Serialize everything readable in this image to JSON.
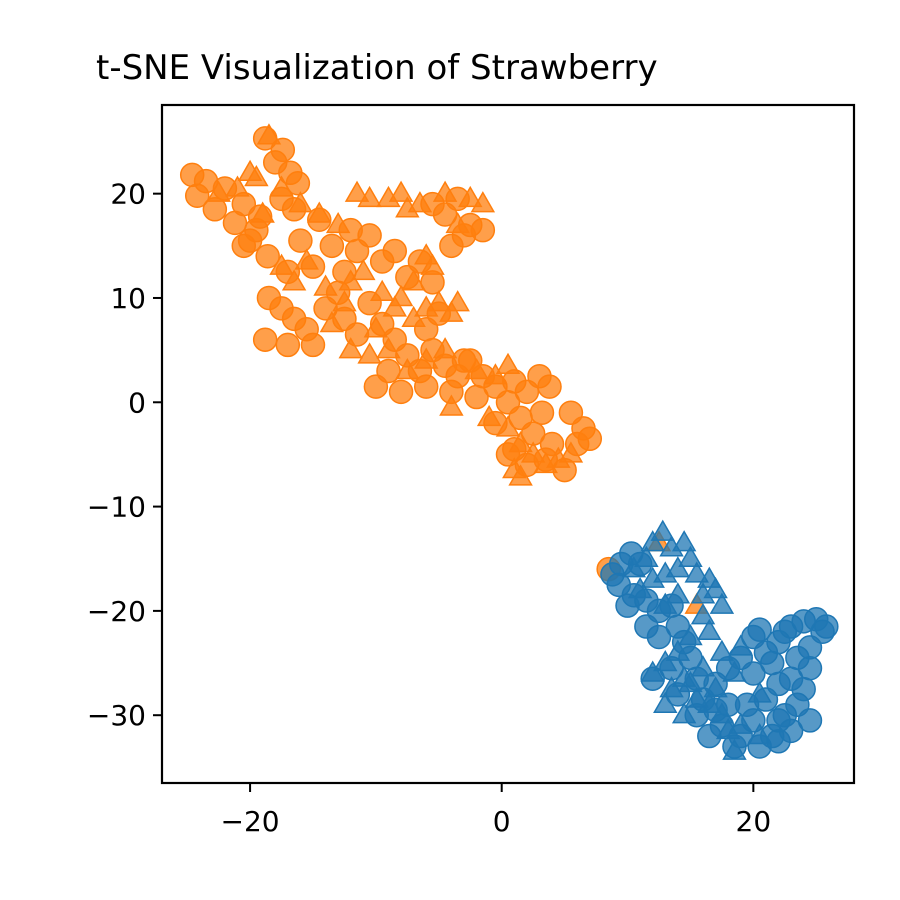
{
  "chart_data": {
    "type": "scatter",
    "title": "t-SNE Visualization of Strawberry",
    "xlabel": "",
    "ylabel": "",
    "xlim": [
      -27,
      28
    ],
    "ylim": [
      -36.5,
      28.5
    ],
    "xticks": [
      -20,
      0,
      20
    ],
    "yticks": [
      20,
      10,
      0,
      -10,
      -20,
      -30
    ],
    "xtick_labels": [
      "−20",
      "0",
      "20"
    ],
    "ytick_labels": [
      "20",
      "10",
      "0",
      "−10",
      "−20",
      "−30"
    ],
    "grid": false,
    "legend": "none",
    "series": [
      {
        "color": "#ff7f0e",
        "marker": "circle",
        "points": [
          [
            -24.6,
            21.8
          ],
          [
            -24.2,
            19.8
          ],
          [
            -23.5,
            21.2
          ],
          [
            -22.8,
            18.5
          ],
          [
            -22.0,
            20.5
          ],
          [
            -21.2,
            17.2
          ],
          [
            -20.5,
            19.0
          ],
          [
            -20.0,
            15.5
          ],
          [
            -19.2,
            17.8
          ],
          [
            -18.8,
            25.3
          ],
          [
            -18.0,
            23.0
          ],
          [
            -17.4,
            24.2
          ],
          [
            -16.8,
            22.0
          ],
          [
            -16.2,
            21.0
          ],
          [
            -17.5,
            19.5
          ],
          [
            -18.6,
            14.0
          ],
          [
            -19.5,
            16.5
          ],
          [
            -17.0,
            12.5
          ],
          [
            -16.0,
            15.5
          ],
          [
            -15.0,
            13.0
          ],
          [
            -14.5,
            17.5
          ],
          [
            -13.5,
            15.0
          ],
          [
            -12.5,
            12.5
          ],
          [
            -11.5,
            14.5
          ],
          [
            -10.5,
            16.0
          ],
          [
            -9.5,
            13.5
          ],
          [
            -8.5,
            14.5
          ],
          [
            -7.5,
            12.0
          ],
          [
            -6.5,
            13.5
          ],
          [
            -5.5,
            11.5
          ],
          [
            -18.5,
            10.0
          ],
          [
            -17.5,
            9.0
          ],
          [
            -16.5,
            8.0
          ],
          [
            -15.5,
            7.0
          ],
          [
            -18.8,
            6.0
          ],
          [
            -17.0,
            5.5
          ],
          [
            -14.0,
            9.0
          ],
          [
            -12.5,
            8.0
          ],
          [
            -11.5,
            6.5
          ],
          [
            -10.5,
            9.5
          ],
          [
            -9.5,
            7.5
          ],
          [
            -8.5,
            6.0
          ],
          [
            -7.5,
            4.5
          ],
          [
            -6.5,
            3.0
          ],
          [
            -5.5,
            5.0
          ],
          [
            -4.5,
            3.5
          ],
          [
            -3.5,
            2.5
          ],
          [
            -2.5,
            4.0
          ],
          [
            -1.5,
            2.5
          ],
          [
            -0.5,
            1.5
          ],
          [
            0.5,
            0.0
          ],
          [
            -9.0,
            3.0
          ],
          [
            -10.0,
            1.5
          ],
          [
            -8.0,
            1.0
          ],
          [
            -6.0,
            1.5
          ],
          [
            -4.0,
            1.0
          ],
          [
            -2.0,
            0.5
          ],
          [
            1.0,
            2.0
          ],
          [
            2.0,
            1.0
          ],
          [
            3.0,
            2.5
          ],
          [
            3.8,
            1.5
          ],
          [
            1.5,
            -1.5
          ],
          [
            2.5,
            -3.0
          ],
          [
            3.2,
            -1.0
          ],
          [
            4.0,
            -4.0
          ],
          [
            1.0,
            -4.5
          ],
          [
            2.0,
            -6.0
          ],
          [
            3.5,
            -5.5
          ],
          [
            5.5,
            -1.0
          ],
          [
            6.5,
            -2.5
          ],
          [
            7.0,
            -3.5
          ],
          [
            6.0,
            -4.0
          ],
          [
            5.0,
            -6.5
          ],
          [
            0.5,
            -5.0
          ],
          [
            -0.5,
            -2.0
          ],
          [
            -5.5,
            19.0
          ],
          [
            -4.5,
            18.0
          ],
          [
            -3.5,
            19.5
          ],
          [
            -2.5,
            17.0
          ],
          [
            -3.0,
            16.0
          ],
          [
            -1.5,
            16.5
          ],
          [
            -4.0,
            15.0
          ],
          [
            -5.0,
            8.5
          ],
          [
            -6.0,
            7.0
          ],
          [
            -3.0,
            4.0
          ],
          [
            -12.0,
            16.5
          ],
          [
            -13.0,
            10.5
          ],
          [
            -15.0,
            5.5
          ],
          [
            -20.5,
            15.0
          ],
          [
            -16.5,
            18.5
          ],
          [
            8.5,
            -16.0
          ]
        ]
      },
      {
        "color": "#ff7f0e",
        "marker": "triangle",
        "points": [
          [
            -22.5,
            20.0
          ],
          [
            -21.0,
            20.5
          ],
          [
            -19.5,
            21.5
          ],
          [
            -18.5,
            25.5
          ],
          [
            -17.5,
            20.5
          ],
          [
            -16.0,
            19.0
          ],
          [
            -14.5,
            18.0
          ],
          [
            -13.0,
            17.0
          ],
          [
            -14.0,
            11.0
          ],
          [
            -12.0,
            11.5
          ],
          [
            -11.0,
            12.5
          ],
          [
            -9.5,
            10.5
          ],
          [
            -8.0,
            10.0
          ],
          [
            -7.5,
            18.5
          ],
          [
            -6.5,
            19.0
          ],
          [
            -10.5,
            19.5
          ],
          [
            -11.5,
            20.0
          ],
          [
            -9.0,
            19.5
          ],
          [
            -8.0,
            20.0
          ],
          [
            -12.5,
            9.5
          ],
          [
            -13.5,
            7.5
          ],
          [
            -10.0,
            7.0
          ],
          [
            -8.5,
            9.0
          ],
          [
            -7.0,
            8.0
          ],
          [
            -6.0,
            9.0
          ],
          [
            -5.0,
            9.5
          ],
          [
            -4.0,
            8.5
          ],
          [
            -3.5,
            9.5
          ],
          [
            -5.5,
            13.0
          ],
          [
            -7.0,
            11.5
          ],
          [
            -12.0,
            5.0
          ],
          [
            -10.5,
            4.5
          ],
          [
            -9.0,
            5.0
          ],
          [
            -7.5,
            3.0
          ],
          [
            -6.0,
            4.0
          ],
          [
            -4.5,
            5.0
          ],
          [
            -2.0,
            3.0
          ],
          [
            -0.5,
            2.5
          ],
          [
            0.5,
            3.5
          ],
          [
            -4.0,
            -0.5
          ],
          [
            -1.0,
            -1.5
          ],
          [
            0.5,
            -2.5
          ],
          [
            1.5,
            -4.0
          ],
          [
            2.5,
            -5.0
          ],
          [
            3.5,
            -6.0
          ],
          [
            4.5,
            -5.5
          ],
          [
            5.5,
            -5.0
          ],
          [
            1.0,
            -6.5
          ],
          [
            1.5,
            -7.2
          ],
          [
            -2.5,
            19.5
          ],
          [
            -1.5,
            19.0
          ],
          [
            -4.5,
            20.0
          ],
          [
            -3.5,
            17.0
          ],
          [
            -6.0,
            14.0
          ],
          [
            -15.5,
            13.5
          ],
          [
            -16.5,
            11.5
          ],
          [
            -17.5,
            13.0
          ],
          [
            -19.0,
            18.0
          ],
          [
            -20.0,
            22.0
          ],
          [
            12.5,
            -13.5
          ],
          [
            15.5,
            -19.5
          ]
        ]
      },
      {
        "color": "#1f77b4",
        "marker": "circle",
        "points": [
          [
            8.8,
            -16.5
          ],
          [
            9.3,
            -17.5
          ],
          [
            10.3,
            -14.5
          ],
          [
            11.0,
            -15.5
          ],
          [
            10.5,
            -18.5
          ],
          [
            11.5,
            -19.0
          ],
          [
            12.5,
            -20.0
          ],
          [
            13.5,
            -19.5
          ],
          [
            14.0,
            -21.5
          ],
          [
            14.5,
            -23.0
          ],
          [
            15.0,
            -24.5
          ],
          [
            15.5,
            -26.5
          ],
          [
            12.0,
            -26.5
          ],
          [
            14.0,
            -28.0
          ],
          [
            16.0,
            -28.5
          ],
          [
            17.0,
            -27.0
          ],
          [
            18.0,
            -25.5
          ],
          [
            19.0,
            -24.5
          ],
          [
            20.0,
            -26.0
          ],
          [
            19.5,
            -29.0
          ],
          [
            20.0,
            -30.5
          ],
          [
            19.0,
            -32.0
          ],
          [
            20.5,
            -33.0
          ],
          [
            21.5,
            -32.0
          ],
          [
            22.0,
            -30.5
          ],
          [
            21.0,
            -28.5
          ],
          [
            22.0,
            -27.0
          ],
          [
            21.5,
            -25.0
          ],
          [
            22.0,
            -23.0
          ],
          [
            23.0,
            -21.5
          ],
          [
            24.0,
            -21.0
          ],
          [
            25.0,
            -20.8
          ],
          [
            25.5,
            -22.0
          ],
          [
            24.5,
            -23.5
          ],
          [
            23.5,
            -24.5
          ],
          [
            24.5,
            -25.5
          ],
          [
            23.0,
            -26.5
          ],
          [
            24.0,
            -27.5
          ],
          [
            23.5,
            -29.0
          ],
          [
            22.5,
            -30.0
          ],
          [
            23.0,
            -31.5
          ],
          [
            22.0,
            -32.5
          ],
          [
            24.5,
            -30.5
          ],
          [
            21.0,
            -24.0
          ],
          [
            20.0,
            -22.5
          ],
          [
            18.5,
            -33.0
          ],
          [
            17.5,
            -31.0
          ],
          [
            16.5,
            -32.0
          ],
          [
            18.0,
            -29.0
          ],
          [
            17.0,
            -29.5
          ],
          [
            15.5,
            -30.0
          ],
          [
            13.5,
            -25.5
          ],
          [
            12.5,
            -22.5
          ],
          [
            11.5,
            -21.5
          ],
          [
            10.0,
            -19.5
          ],
          [
            9.5,
            -15.5
          ],
          [
            22.5,
            -22.0
          ],
          [
            25.8,
            -21.5
          ],
          [
            20.5,
            -21.8
          ]
        ]
      },
      {
        "color": "#1f77b4",
        "marker": "triangle",
        "points": [
          [
            12.0,
            -13.5
          ],
          [
            12.8,
            -12.5
          ],
          [
            13.5,
            -14.0
          ],
          [
            14.5,
            -13.5
          ],
          [
            15.0,
            -15.0
          ],
          [
            15.5,
            -16.5
          ],
          [
            16.5,
            -17.0
          ],
          [
            17.0,
            -18.0
          ],
          [
            14.0,
            -16.0
          ],
          [
            13.0,
            -16.5
          ],
          [
            12.0,
            -17.0
          ],
          [
            11.5,
            -15.0
          ],
          [
            10.5,
            -16.0
          ],
          [
            14.0,
            -18.5
          ],
          [
            13.0,
            -19.5
          ],
          [
            16.0,
            -20.5
          ],
          [
            16.5,
            -22.0
          ],
          [
            15.0,
            -22.5
          ],
          [
            14.0,
            -24.0
          ],
          [
            13.0,
            -25.0
          ],
          [
            12.0,
            -26.0
          ],
          [
            13.5,
            -27.5
          ],
          [
            14.5,
            -26.5
          ],
          [
            15.5,
            -28.5
          ],
          [
            16.5,
            -29.0
          ],
          [
            17.5,
            -30.0
          ],
          [
            18.0,
            -31.5
          ],
          [
            19.0,
            -31.0
          ],
          [
            17.0,
            -27.5
          ],
          [
            16.0,
            -25.5
          ],
          [
            17.5,
            -24.0
          ],
          [
            19.0,
            -23.5
          ],
          [
            18.5,
            -26.0
          ],
          [
            20.5,
            -28.0
          ],
          [
            20.5,
            -32.0
          ],
          [
            18.5,
            -33.5
          ],
          [
            14.5,
            -30.0
          ],
          [
            13.0,
            -29.0
          ],
          [
            15.0,
            -27.0
          ],
          [
            11.0,
            -18.0
          ],
          [
            17.5,
            -19.5
          ],
          [
            16.0,
            -18.5
          ]
        ]
      }
    ]
  }
}
